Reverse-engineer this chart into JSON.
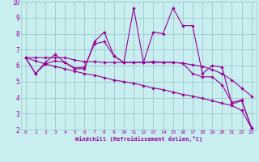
{
  "xlabel": "Windchill (Refroidissement éolien,°C)",
  "bg_color": "#c8eef0",
  "line_color": "#990099",
  "grid_color": "#a0c8cc",
  "xlim": [
    -0.5,
    23.5
  ],
  "ylim": [
    2,
    10
  ],
  "xticks": [
    0,
    1,
    2,
    3,
    4,
    5,
    6,
    7,
    8,
    9,
    10,
    11,
    12,
    13,
    14,
    15,
    16,
    17,
    18,
    19,
    20,
    21,
    22,
    23
  ],
  "yticks": [
    2,
    3,
    4,
    5,
    6,
    7,
    8,
    9,
    10
  ],
  "lines": [
    [
      6.5,
      5.5,
      6.2,
      6.7,
      6.2,
      5.8,
      5.8,
      7.5,
      8.1,
      6.6,
      6.2,
      9.6,
      6.2,
      8.1,
      8.0,
      9.6,
      8.5,
      8.5,
      5.5,
      6.0,
      5.9,
      3.6,
      3.8,
      2.1
    ],
    [
      6.5,
      5.5,
      6.1,
      6.3,
      6.2,
      5.85,
      5.9,
      7.35,
      7.5,
      6.6,
      6.2,
      6.2,
      6.2,
      6.25,
      6.2,
      6.2,
      6.15,
      5.5,
      5.3,
      5.3,
      4.8,
      3.7,
      3.85,
      2.1
    ],
    [
      6.5,
      6.5,
      6.5,
      6.5,
      6.5,
      6.35,
      6.25,
      6.25,
      6.2,
      6.2,
      6.2,
      6.2,
      6.2,
      6.2,
      6.2,
      6.2,
      6.15,
      6.05,
      5.95,
      5.75,
      5.5,
      5.1,
      4.6,
      4.1
    ],
    [
      6.5,
      6.3,
      6.1,
      5.95,
      5.8,
      5.65,
      5.5,
      5.4,
      5.25,
      5.1,
      5.0,
      4.9,
      4.75,
      4.6,
      4.5,
      4.35,
      4.2,
      4.1,
      3.95,
      3.8,
      3.65,
      3.5,
      3.2,
      2.1
    ]
  ]
}
